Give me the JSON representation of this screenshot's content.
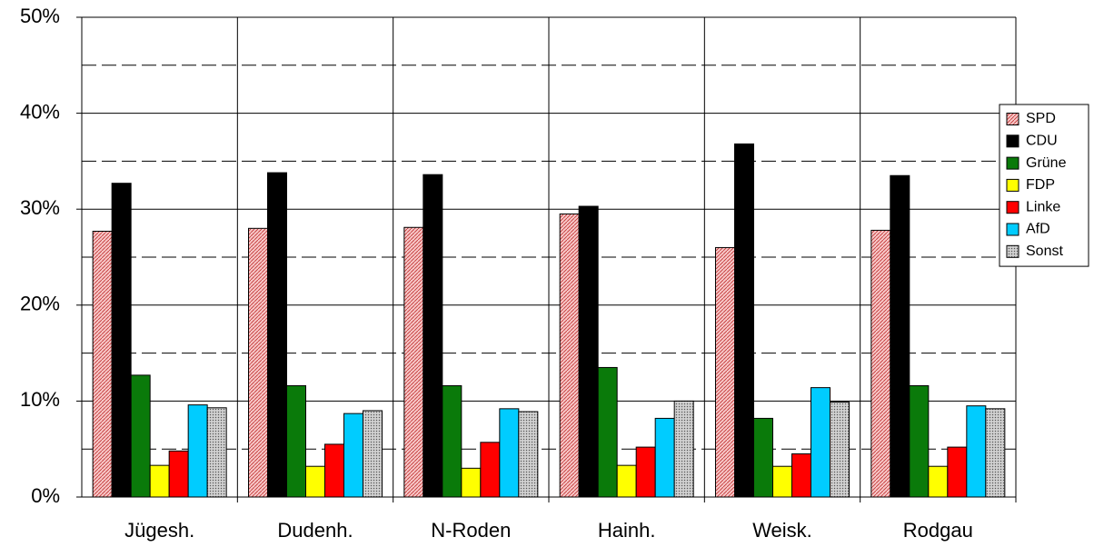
{
  "chart_data": {
    "type": "bar",
    "categories": [
      "Jügesh.",
      "Dudenh.",
      "N-Roden",
      "Hainh.",
      "Weisk.",
      "Rodgau"
    ],
    "series": [
      {
        "name": "SPD",
        "color": "#f7c6c6",
        "pattern": "hatch",
        "values": [
          27.7,
          28.0,
          28.1,
          29.5,
          26.0,
          27.8
        ]
      },
      {
        "name": "CDU",
        "color": "#000000",
        "values": [
          32.7,
          33.8,
          33.6,
          30.3,
          36.8,
          33.5
        ]
      },
      {
        "name": "Grüne",
        "color": "#0a7a0a",
        "values": [
          12.7,
          11.6,
          11.6,
          13.5,
          8.2,
          11.6
        ]
      },
      {
        "name": "FDP",
        "color": "#ffff00",
        "values": [
          3.3,
          3.2,
          3.0,
          3.3,
          3.2,
          3.2
        ]
      },
      {
        "name": "Linke",
        "color": "#ff0000",
        "values": [
          4.8,
          5.5,
          5.7,
          5.2,
          4.5,
          5.2
        ]
      },
      {
        "name": "AfD",
        "color": "#00ccff",
        "values": [
          9.6,
          8.7,
          9.2,
          8.2,
          11.4,
          9.5
        ]
      },
      {
        "name": "Sonst",
        "color": "#c0c0c0",
        "pattern": "dots",
        "values": [
          9.3,
          9.0,
          8.9,
          10.0,
          9.9,
          9.2
        ]
      }
    ],
    "ylim": [
      0,
      50
    ],
    "yticks": [
      {
        "value": 0,
        "label": "0%"
      },
      {
        "value": 10,
        "label": "10%"
      },
      {
        "value": 20,
        "label": "20%"
      },
      {
        "value": 30,
        "label": "30%"
      },
      {
        "value": 40,
        "label": "40%"
      },
      {
        "value": 50,
        "label": "50%"
      }
    ],
    "minor_yticks": [
      5,
      15,
      25,
      35,
      45
    ],
    "grid": true,
    "legend": "right"
  }
}
